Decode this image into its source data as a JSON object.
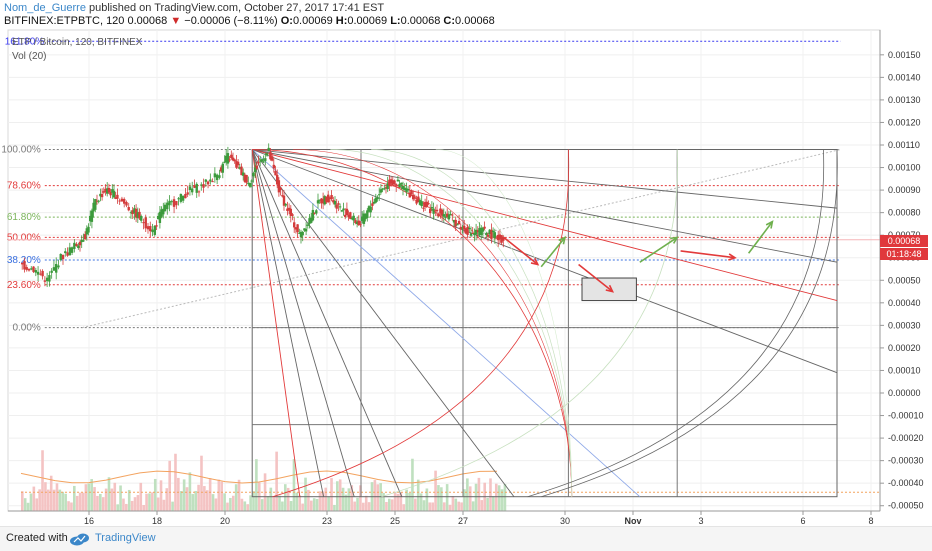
{
  "header": {
    "author": "Nom_de_Guerre",
    "published": "published on TradingView.com, October 27, 2017 17:41 EST",
    "symbol_line": "BITFINEX:ETPBTC, 120",
    "last": "0.00068",
    "change_arrow": "▼",
    "change": "−0.00006 (−8.11%)",
    "ohlc": {
      "o_label": "O:",
      "o": "0.00069",
      "h_label": "H:",
      "h": "0.00069",
      "l_label": "L:",
      "l": "0.00068",
      "c_label": "C:",
      "c": "0.00068"
    }
  },
  "legend": {
    "series": "ETP / Bitcoin, 120, BITFINEX",
    "volume": "Vol (20)"
  },
  "current_price_badge": {
    "value": "0.00068",
    "countdown": "01:18:48",
    "color": "#e0383c"
  },
  "footer": {
    "created_with": "Created with",
    "brand": "TradingView"
  },
  "chart_data": {
    "type": "candlestick",
    "ylim": [
      -0.0005,
      0.00165
    ],
    "y_tick_labels": [
      "0.00150",
      "0.00140",
      "0.00130",
      "0.00120",
      "0.00110",
      "0.00100",
      "0.00090",
      "0.00080",
      "0.00070",
      "0.00060",
      "0.00050",
      "0.00040",
      "0.00030",
      "0.00020",
      "0.00010",
      "0.00000",
      "-0.00010",
      "-0.00020",
      "-0.00030",
      "-0.00040",
      "-0.00050"
    ],
    "y_tick_values": [
      0.0015,
      0.0014,
      0.0013,
      0.0012,
      0.0011,
      0.001,
      0.0009,
      0.0008,
      0.0007,
      0.0006,
      0.0005,
      0.0004,
      0.0003,
      0.0002,
      0.0001,
      0,
      -0.0001,
      -0.0002,
      -0.0003,
      -0.0004,
      -0.0005
    ],
    "x_ticks": [
      {
        "label": "16",
        "day": 16
      },
      {
        "label": "18",
        "day": 18
      },
      {
        "label": "20",
        "day": 20
      },
      {
        "label": "23",
        "day": 23
      },
      {
        "label": "25",
        "day": 25
      },
      {
        "label": "27",
        "day": 27
      },
      {
        "label": "30",
        "day": 30
      },
      {
        "label": "Nov",
        "day": 32
      },
      {
        "label": "3",
        "day": 34
      },
      {
        "label": "6",
        "day": 37
      },
      {
        "label": "8",
        "day": 39
      }
    ],
    "fib_levels": [
      {
        "label": "161.80%",
        "value": 0.00156,
        "color": "#3a3af0"
      },
      {
        "label": "100.00%",
        "value": 0.00108,
        "color": "#7a7a7a"
      },
      {
        "label": "78.60%",
        "value": 0.00092,
        "color": "#e23a3a"
      },
      {
        "label": "61.80%",
        "value": 0.00078,
        "color": "#7ab45a"
      },
      {
        "label": "50.00%",
        "value": 0.00069,
        "color": "#e23a3a"
      },
      {
        "label": "38.20%",
        "value": 0.00059,
        "color": "#3a70e0"
      },
      {
        "label": "23.60%",
        "value": 0.00048,
        "color": "#e23a3a"
      },
      {
        "label": "0.00%",
        "value": 0.00029,
        "color": "#7a7a7a"
      }
    ],
    "price_path": [
      [
        14.0,
        0.00057
      ],
      [
        14.4,
        0.00055
      ],
      [
        14.8,
        0.0005
      ],
      [
        15.2,
        0.0006
      ],
      [
        15.6,
        0.00065
      ],
      [
        15.9,
        0.0007
      ],
      [
        16.2,
        0.00085
      ],
      [
        16.5,
        0.0009
      ],
      [
        16.8,
        0.00088
      ],
      [
        17.2,
        0.00082
      ],
      [
        17.5,
        0.00078
      ],
      [
        17.9,
        0.00072
      ],
      [
        18.2,
        0.00082
      ],
      [
        18.6,
        0.00085
      ],
      [
        19.0,
        0.0009
      ],
      [
        19.4,
        0.00092
      ],
      [
        19.8,
        0.00097
      ],
      [
        20.1,
        0.00105
      ],
      [
        20.4,
        0.001
      ],
      [
        20.7,
        0.00093
      ],
      [
        21.0,
        0.00102
      ],
      [
        21.3,
        0.00107
      ],
      [
        21.6,
        0.0009
      ],
      [
        21.9,
        0.0008
      ],
      [
        22.2,
        0.0007
      ],
      [
        22.5,
        0.00077
      ],
      [
        22.8,
        0.00085
      ],
      [
        23.1,
        0.00087
      ],
      [
        23.4,
        0.00082
      ],
      [
        23.7,
        0.00078
      ],
      [
        24.0,
        0.00075
      ],
      [
        24.3,
        0.00083
      ],
      [
        24.6,
        0.0009
      ],
      [
        24.9,
        0.00094
      ],
      [
        25.2,
        0.00092
      ],
      [
        25.5,
        0.00088
      ],
      [
        25.8,
        0.00084
      ],
      [
        26.1,
        0.00081
      ],
      [
        26.4,
        0.0008
      ],
      [
        26.7,
        0.00077
      ],
      [
        27.0,
        0.00073
      ],
      [
        27.3,
        0.00071
      ],
      [
        27.6,
        0.00072
      ],
      [
        27.9,
        0.0007
      ],
      [
        28.2,
        0.00068
      ]
    ],
    "forecast_arrows": [
      {
        "from": [
          28.2,
          0.00069
        ],
        "to": [
          29.2,
          0.00057
        ],
        "color": "#e23a3a"
      },
      {
        "from": [
          29.3,
          0.00056
        ],
        "to": [
          30.0,
          0.00069
        ],
        "color": "#6fb04e"
      },
      {
        "from": [
          30.4,
          0.00057
        ],
        "to": [
          31.4,
          0.00045
        ],
        "color": "#e23a3a"
      },
      {
        "from": [
          32.2,
          0.00058
        ],
        "to": [
          33.3,
          0.00069
        ],
        "color": "#6fb04e"
      },
      {
        "from": [
          33.4,
          0.00063
        ],
        "to": [
          35.0,
          0.0006
        ],
        "color": "#e23a3a"
      },
      {
        "from": [
          35.4,
          0.00062
        ],
        "to": [
          36.1,
          0.00076
        ],
        "color": "#6fb04e"
      }
    ],
    "grid": true
  }
}
